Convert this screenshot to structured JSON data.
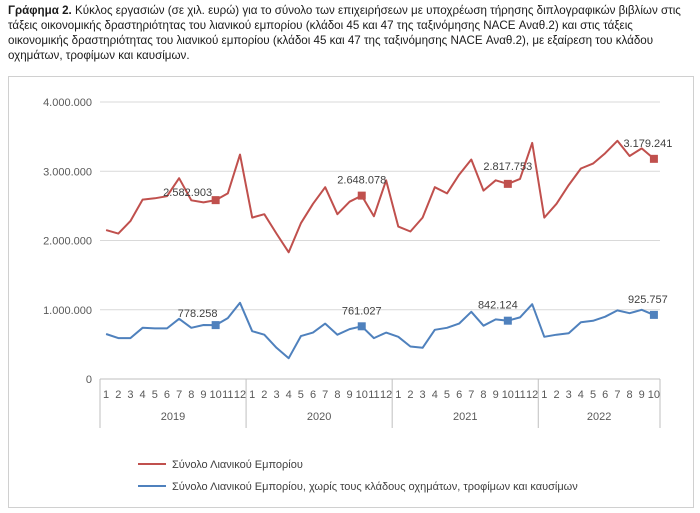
{
  "caption": {
    "label": "Γράφημα 2.",
    "text": "Κύκλος εργασιών (σε χιλ. ευρώ) για το σύνολο των επιχειρήσεων με υποχρέωση τήρησης διπλογραφικών βιβλίων στις τάξεις οικονομικής δραστηριότητας του λιανικού εμπορίου (κλάδοι 45 και 47 της ταξινόμησης NACE Αναθ.2) και στις τάξεις οικονομικής δραστηριότητας του λιανικού εμπορίου (κλάδοι 45 και 47 της ταξινόμησης NACE Αναθ.2), με εξαίρεση του κλάδου οχημάτων, τροφίμων και καυσίμων."
  },
  "chart_data": {
    "type": "line",
    "y_ticks": [
      "0",
      "1.000.000",
      "2.000.000",
      "3.000.000",
      "4.000.000"
    ],
    "ylim": [
      0,
      4000000
    ],
    "x_month_labels": [
      "1",
      "2",
      "3",
      "4",
      "5",
      "6",
      "7",
      "8",
      "9",
      "10",
      "11",
      "12",
      "1",
      "2",
      "3",
      "4",
      "5",
      "6",
      "7",
      "8",
      "9",
      "10",
      "11",
      "12",
      "1",
      "2",
      "3",
      "4",
      "5",
      "6",
      "7",
      "8",
      "9",
      "10",
      "11",
      "12",
      "1",
      "2",
      "3",
      "4",
      "5",
      "6",
      "7",
      "8",
      "9",
      "10"
    ],
    "years": [
      {
        "label": "2019",
        "start": 0,
        "count": 12
      },
      {
        "label": "2020",
        "start": 12,
        "count": 12
      },
      {
        "label": "2021",
        "start": 24,
        "count": 12
      },
      {
        "label": "2022",
        "start": 36,
        "count": 10
      }
    ],
    "grid": true,
    "legend_position": "bottom",
    "series": [
      {
        "name": "Σύνολο Λιανικού Εμπορίου",
        "color": "#c0504d",
        "values": [
          2150000,
          2100000,
          2280000,
          2590000,
          2610000,
          2640000,
          2900000,
          2580000,
          2550000,
          2582903,
          2680000,
          3240000,
          2330000,
          2380000,
          2100000,
          1830000,
          2250000,
          2530000,
          2770000,
          2380000,
          2560000,
          2648078,
          2350000,
          2870000,
          2200000,
          2130000,
          2330000,
          2770000,
          2680000,
          2950000,
          3170000,
          2720000,
          2870000,
          2817753,
          2890000,
          3410000,
          2330000,
          2530000,
          2800000,
          3040000,
          3110000,
          3260000,
          3440000,
          3220000,
          3330000,
          3179241
        ],
        "markers": [
          {
            "index": 9,
            "label": "2.582.903"
          },
          {
            "index": 21,
            "label": "2.648.078"
          },
          {
            "index": 33,
            "label": "2.817.753"
          },
          {
            "index": 45,
            "label": "3.179.241"
          }
        ]
      },
      {
        "name": "Σύνολο Λιανικού Εμπορίου, χωρίς τους κλάδους οχημάτων, τροφίμων και καυσίμων",
        "color": "#4f81bd",
        "values": [
          650000,
          590000,
          590000,
          740000,
          730000,
          730000,
          870000,
          740000,
          780000,
          778258,
          880000,
          1100000,
          690000,
          640000,
          450000,
          300000,
          620000,
          670000,
          800000,
          640000,
          720000,
          761027,
          590000,
          670000,
          610000,
          470000,
          450000,
          710000,
          740000,
          800000,
          970000,
          770000,
          860000,
          842124,
          890000,
          1080000,
          610000,
          640000,
          660000,
          820000,
          840000,
          900000,
          990000,
          950000,
          1000000,
          925757
        ],
        "markers": [
          {
            "index": 9,
            "label": "778.258"
          },
          {
            "index": 21,
            "label": "761.027"
          },
          {
            "index": 33,
            "label": "842.124"
          },
          {
            "index": 45,
            "label": "925.757"
          }
        ]
      }
    ]
  }
}
